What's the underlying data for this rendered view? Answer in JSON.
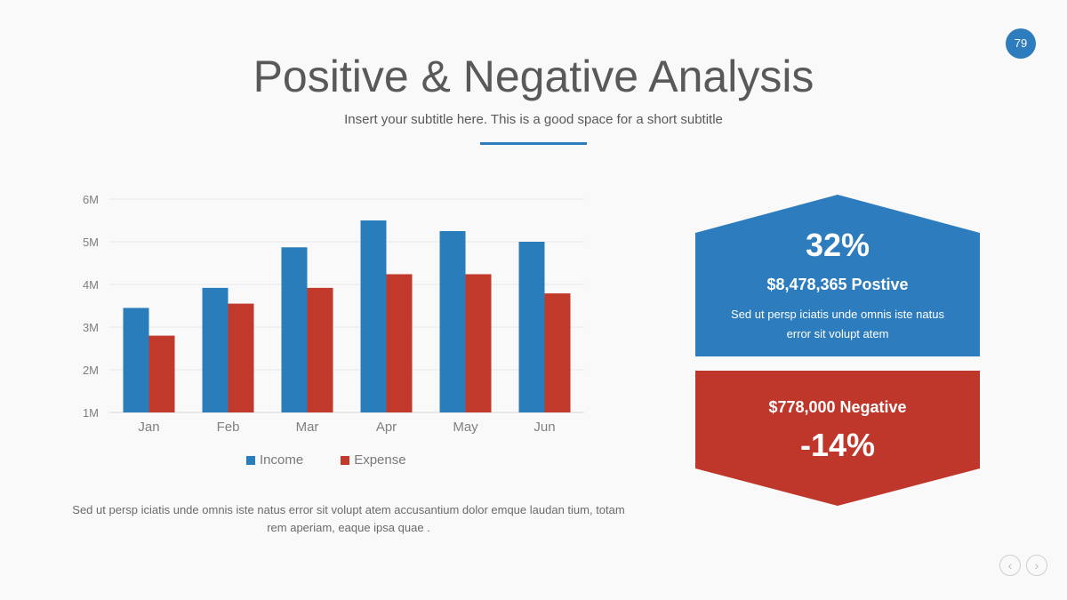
{
  "slide": {
    "page_number": "79",
    "title": "Positive & Negative Analysis",
    "subtitle": "Insert your subtitle here. This is a good space for a short subtitle",
    "caption": "Sed ut persp iciatis unde omnis iste natus error sit volupt atem accusantium dolor emque laudan tium, totam rem aperiam, eaque ipsa quae ."
  },
  "positive": {
    "percent": "32%",
    "amount_text": "$8,478,365 Postive",
    "description": "Sed ut persp iciatis unde omnis iste natus error sit volupt atem",
    "color": "#2d7cbd"
  },
  "negative": {
    "amount_text": "$778,000  Negative",
    "percent": "-14%",
    "color": "#bf372b"
  },
  "navigation": {
    "prev_icon": "chevron-left-icon",
    "next_icon": "chevron-right-icon",
    "prev_glyph": "‹",
    "next_glyph": "›"
  },
  "chart_data": {
    "type": "bar",
    "categories": [
      "Jan",
      "Feb",
      "Mar",
      "Apr",
      "May",
      "Jun"
    ],
    "series": [
      {
        "name": "Income",
        "values": [
          3.45,
          3.92,
          4.87,
          5.5,
          5.25,
          5.0
        ],
        "color": "#2a7dbb"
      },
      {
        "name": "Expense",
        "values": [
          2.8,
          3.55,
          3.92,
          4.24,
          4.24,
          3.79
        ],
        "color": "#c0392b"
      }
    ],
    "ylim": [
      1,
      6
    ],
    "yticks": [
      1,
      2,
      3,
      4,
      5,
      6
    ],
    "ytick_labels": [
      "1M",
      "2M",
      "3M",
      "4M",
      "5M",
      "6M"
    ],
    "grid": true,
    "legend_position": "bottom",
    "title": "",
    "xlabel": "",
    "ylabel": ""
  }
}
